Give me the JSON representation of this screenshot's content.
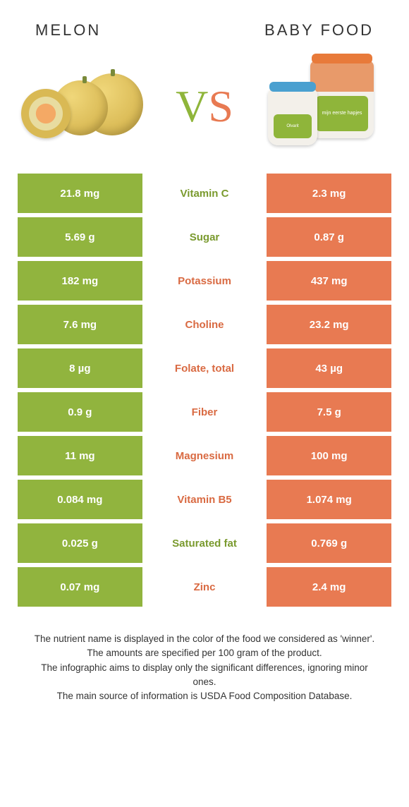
{
  "header": {
    "left_title": "Melon",
    "right_title": "Baby food"
  },
  "vs": {
    "v": "V",
    "s": "S"
  },
  "colors": {
    "left_bar": "#91b43e",
    "right_bar": "#e87a52",
    "left_text": "#7a9a2e",
    "right_text": "#d96a42",
    "background": "#ffffff"
  },
  "jar_labels": {
    "small": "Olvarit",
    "big": "mijn eerste hapjes"
  },
  "comparison": {
    "left_color": "#91b43e",
    "right_color": "#e87a52",
    "winner_left_text_color": "#7a9a2e",
    "winner_right_text_color": "#d96a42",
    "rows": [
      {
        "left": "21.8 mg",
        "label": "Vitamin C",
        "right": "2.3 mg",
        "winner": "left"
      },
      {
        "left": "5.69 g",
        "label": "Sugar",
        "right": "0.87 g",
        "winner": "left"
      },
      {
        "left": "182 mg",
        "label": "Potassium",
        "right": "437 mg",
        "winner": "right"
      },
      {
        "left": "7.6 mg",
        "label": "Choline",
        "right": "23.2 mg",
        "winner": "right"
      },
      {
        "left": "8 µg",
        "label": "Folate, total",
        "right": "43 µg",
        "winner": "right"
      },
      {
        "left": "0.9 g",
        "label": "Fiber",
        "right": "7.5 g",
        "winner": "right"
      },
      {
        "left": "11 mg",
        "label": "Magnesium",
        "right": "100 mg",
        "winner": "right"
      },
      {
        "left": "0.084 mg",
        "label": "Vitamin B5",
        "right": "1.074 mg",
        "winner": "right"
      },
      {
        "left": "0.025 g",
        "label": "Saturated fat",
        "right": "0.769 g",
        "winner": "left"
      },
      {
        "left": "0.07 mg",
        "label": "Zinc",
        "right": "2.4 mg",
        "winner": "right"
      }
    ]
  },
  "footer": {
    "line1": "The nutrient name is displayed in the color of the food we considered as 'winner'.",
    "line2": "The amounts are specified per 100 gram of the product.",
    "line3": "The infographic aims to display only the significant differences, ignoring minor ones.",
    "line4": "The main source of information is USDA Food Composition Database."
  }
}
